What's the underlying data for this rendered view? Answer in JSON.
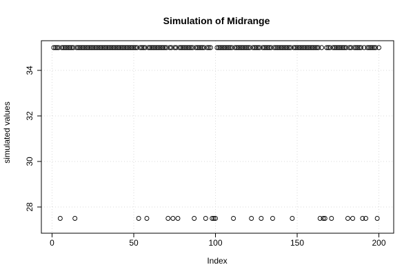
{
  "chart_data": {
    "type": "scatter",
    "title": "Simulation of Midrange",
    "xlabel": "Index",
    "ylabel": "simulated values",
    "xlim": [
      0,
      200
    ],
    "ylim": [
      27.3,
      35.2
    ],
    "xticks": [
      "0",
      "50",
      "100",
      "150",
      "200"
    ],
    "yticks": [
      "28",
      "30",
      "32",
      "34"
    ],
    "grid": true,
    "marker": "open-circle",
    "colors": {
      "points": "#000000",
      "axis": "#000000",
      "grid": "#d9d9d9"
    },
    "series": [
      {
        "values": [
          35,
          35,
          35,
          35,
          27.5,
          35,
          35,
          35,
          35,
          35,
          35,
          35,
          35,
          27.5,
          35,
          35,
          35,
          35,
          35,
          35,
          35,
          35,
          35,
          35,
          35,
          35,
          35,
          35,
          35,
          35,
          35,
          35,
          35,
          35,
          35,
          35,
          35,
          35,
          35,
          35,
          35,
          35,
          35,
          35,
          35,
          35,
          35,
          35,
          35,
          35,
          35,
          35,
          27.5,
          35,
          35,
          35,
          35,
          27.5,
          35,
          35,
          35,
          35,
          35,
          35,
          35,
          35,
          35,
          35,
          35,
          35,
          27.5,
          35,
          35,
          27.5,
          35,
          35,
          27.5,
          35,
          35,
          35,
          35,
          35,
          35,
          35,
          35,
          35,
          27.5,
          35,
          35,
          35,
          35,
          35,
          35,
          27.5,
          35,
          35,
          35,
          27.5,
          27.5,
          27.5,
          35,
          35,
          35,
          35,
          35,
          35,
          35,
          35,
          35,
          35,
          27.5,
          35,
          35,
          35,
          35,
          35,
          35,
          35,
          35,
          35,
          35,
          27.5,
          35,
          35,
          35,
          35,
          35,
          27.5,
          35,
          35,
          35,
          35,
          35,
          35,
          27.5,
          35,
          35,
          35,
          35,
          35,
          35,
          35,
          35,
          35,
          35,
          35,
          27.5,
          35,
          35,
          35,
          35,
          35,
          35,
          35,
          35,
          35,
          35,
          35,
          35,
          35,
          35,
          35,
          35,
          27.5,
          35,
          27.5,
          27.5,
          35,
          35,
          35,
          27.5,
          35,
          35,
          35,
          35,
          35,
          35,
          35,
          35,
          35,
          27.5,
          35,
          35,
          27.5,
          35,
          35,
          35,
          35,
          35,
          27.5,
          35,
          27.5,
          35,
          35,
          35,
          35,
          35,
          35,
          27.5,
          35
        ]
      }
    ]
  }
}
